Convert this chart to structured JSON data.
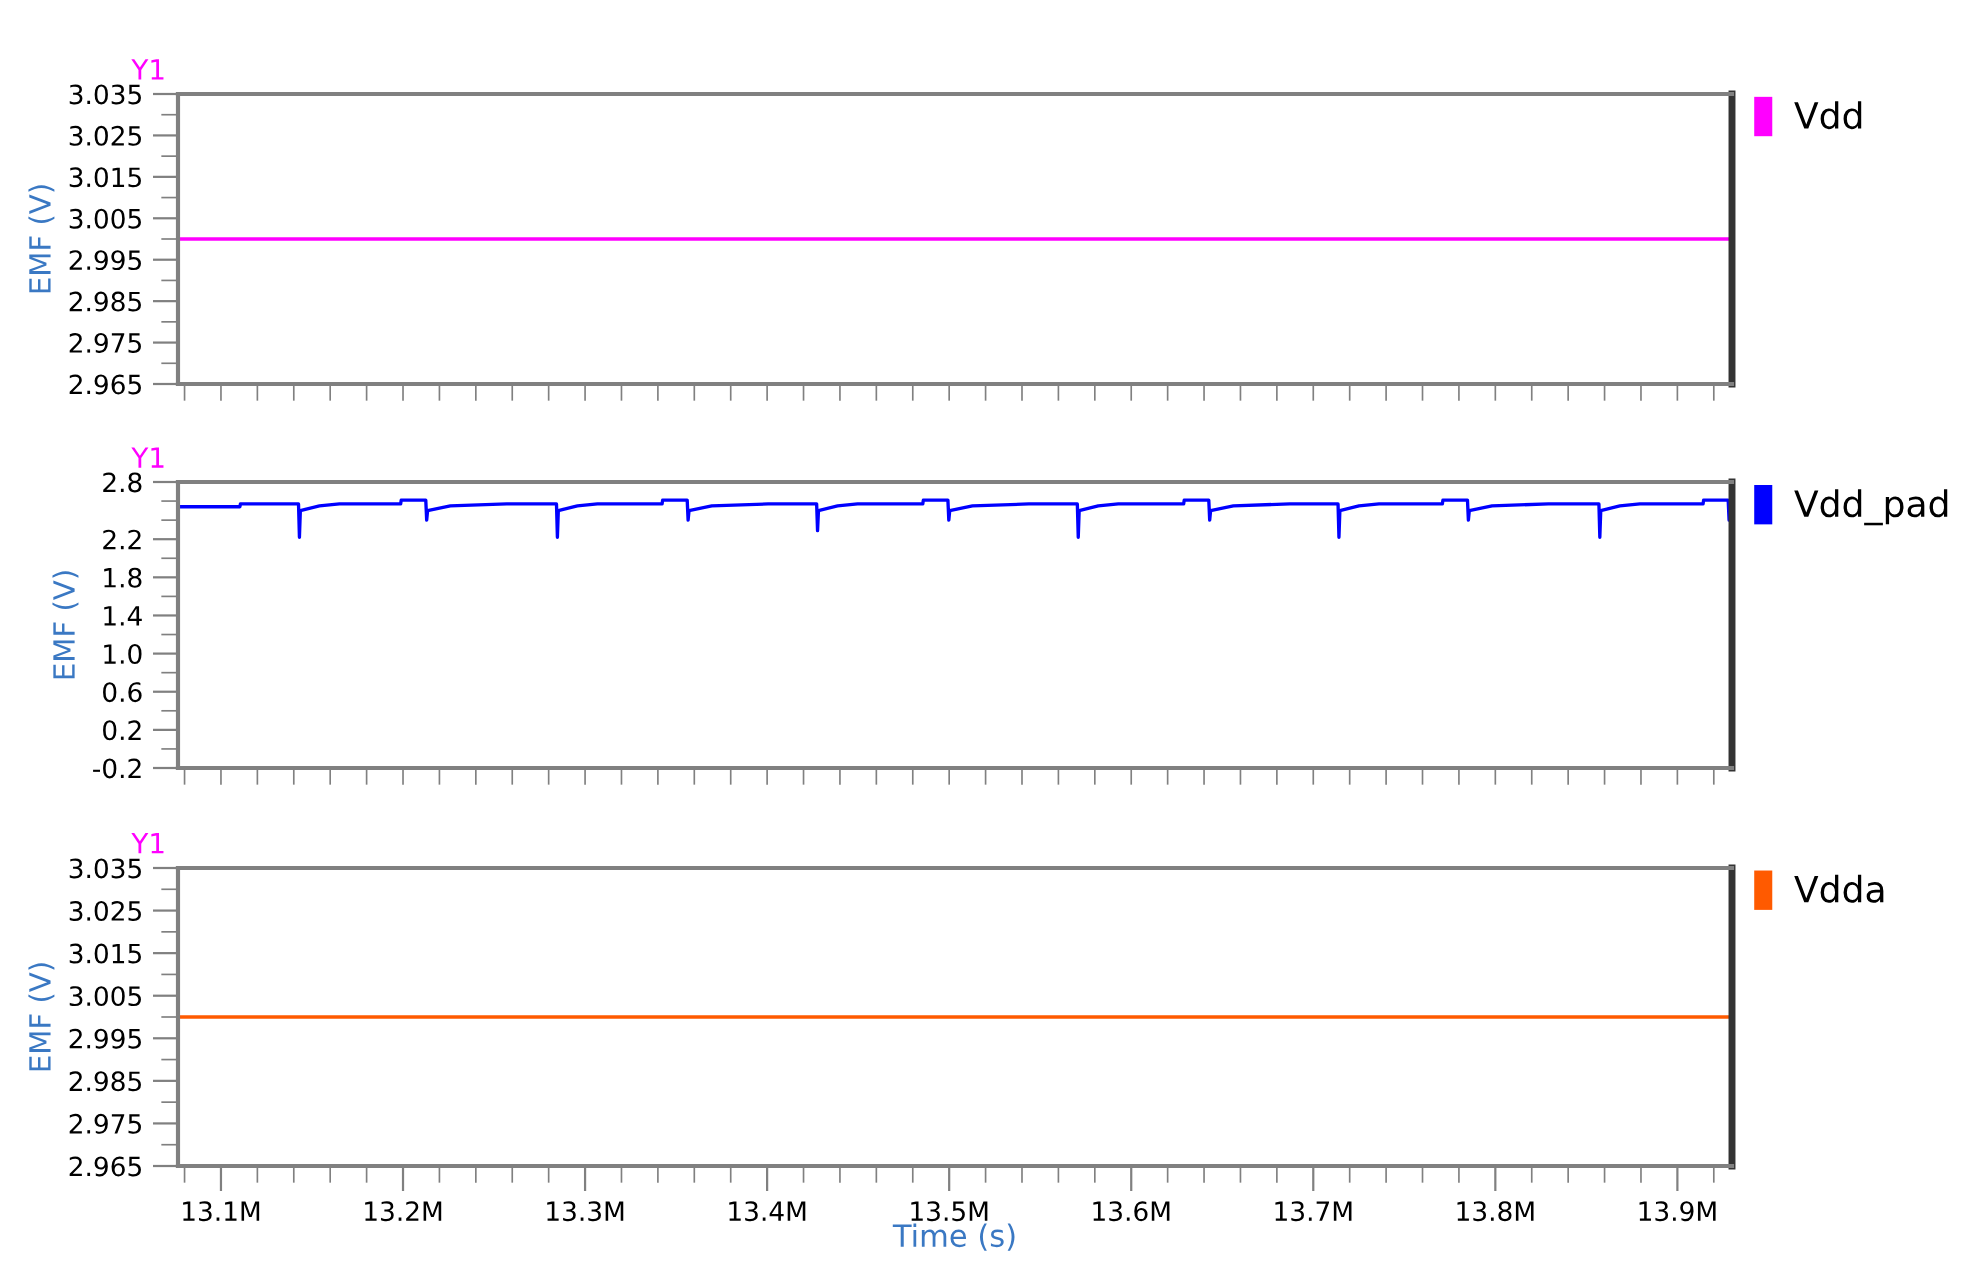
{
  "chart_data": [
    {
      "type": "line",
      "ylabel": "EMF (V)",
      "annotations": [
        "Y1"
      ],
      "legend": "right",
      "tick_labels": "y",
      "xlim": [
        13076400,
        13930000
      ],
      "ylim": [
        2.965,
        3.035
      ],
      "xticks": [
        {
          "value": 13080000,
          "label": null
        },
        {
          "value": 13100000,
          "label": null
        },
        {
          "value": 13120000,
          "label": null
        },
        {
          "value": 13140000,
          "label": null
        },
        {
          "value": 13160000,
          "label": null
        },
        {
          "value": 13180000,
          "label": null
        },
        {
          "value": 13200000,
          "label": null
        },
        {
          "value": 13220000,
          "label": null
        },
        {
          "value": 13240000,
          "label": null
        },
        {
          "value": 13260000,
          "label": null
        },
        {
          "value": 13280000,
          "label": null
        },
        {
          "value": 13300000,
          "label": null
        },
        {
          "value": 13320000,
          "label": null
        },
        {
          "value": 13340000,
          "label": null
        },
        {
          "value": 13360000,
          "label": null
        },
        {
          "value": 13380000,
          "label": null
        },
        {
          "value": 13400000,
          "label": null
        },
        {
          "value": 13420000,
          "label": null
        },
        {
          "value": 13440000,
          "label": null
        },
        {
          "value": 13460000,
          "label": null
        },
        {
          "value": 13480000,
          "label": null
        },
        {
          "value": 13500000,
          "label": null
        },
        {
          "value": 13520000,
          "label": null
        },
        {
          "value": 13540000,
          "label": null
        },
        {
          "value": 13560000,
          "label": null
        },
        {
          "value": 13580000,
          "label": null
        },
        {
          "value": 13600000,
          "label": null
        },
        {
          "value": 13620000,
          "label": null
        },
        {
          "value": 13640000,
          "label": null
        },
        {
          "value": 13660000,
          "label": null
        },
        {
          "value": 13680000,
          "label": null
        },
        {
          "value": 13700000,
          "label": null
        },
        {
          "value": 13720000,
          "label": null
        },
        {
          "value": 13740000,
          "label": null
        },
        {
          "value": 13760000,
          "label": null
        },
        {
          "value": 13780000,
          "label": null
        },
        {
          "value": 13800000,
          "label": null
        },
        {
          "value": 13820000,
          "label": null
        },
        {
          "value": 13840000,
          "label": null
        },
        {
          "value": 13860000,
          "label": null
        },
        {
          "value": 13880000,
          "label": null
        },
        {
          "value": 13900000,
          "label": null
        },
        {
          "value": 13920000,
          "label": null
        }
      ],
      "yticks": [
        3.035,
        {
          "value": 3.03,
          "label": null
        },
        3.025,
        {
          "value": 3.02,
          "label": null
        },
        3.015,
        {
          "value": 3.01,
          "label": null
        },
        3.005,
        {
          "value": 3.0,
          "label": null
        },
        2.995,
        {
          "value": 2.99,
          "label": null
        },
        2.985,
        {
          "value": 2.98,
          "label": null
        },
        2.975,
        {
          "value": 2.97,
          "label": null
        },
        2.965
      ],
      "series": [
        {
          "name": "Vdd",
          "color": "#ff00ff",
          "x": [
            13076400,
            13930000
          ],
          "values": [
            3.0,
            3.0
          ]
        }
      ]
    },
    {
      "type": "line",
      "ylabel": "EMF (V)",
      "annotations": [
        "Y1"
      ],
      "legend": "right",
      "tick_labels": "y",
      "xlim": [
        13076400,
        13930000
      ],
      "ylim": [
        -0.2,
        2.8
      ],
      "xticks": [
        {
          "value": 13080000,
          "label": null
        },
        {
          "value": 13100000,
          "label": null
        },
        {
          "value": 13120000,
          "label": null
        },
        {
          "value": 13140000,
          "label": null
        },
        {
          "value": 13160000,
          "label": null
        },
        {
          "value": 13180000,
          "label": null
        },
        {
          "value": 13200000,
          "label": null
        },
        {
          "value": 13220000,
          "label": null
        },
        {
          "value": 13240000,
          "label": null
        },
        {
          "value": 13260000,
          "label": null
        },
        {
          "value": 13280000,
          "label": null
        },
        {
          "value": 13300000,
          "label": null
        },
        {
          "value": 13320000,
          "label": null
        },
        {
          "value": 13340000,
          "label": null
        },
        {
          "value": 13360000,
          "label": null
        },
        {
          "value": 13380000,
          "label": null
        },
        {
          "value": 13400000,
          "label": null
        },
        {
          "value": 13420000,
          "label": null
        },
        {
          "value": 13440000,
          "label": null
        },
        {
          "value": 13460000,
          "label": null
        },
        {
          "value": 13480000,
          "label": null
        },
        {
          "value": 13500000,
          "label": null
        },
        {
          "value": 13520000,
          "label": null
        },
        {
          "value": 13540000,
          "label": null
        },
        {
          "value": 13560000,
          "label": null
        },
        {
          "value": 13580000,
          "label": null
        },
        {
          "value": 13600000,
          "label": null
        },
        {
          "value": 13620000,
          "label": null
        },
        {
          "value": 13640000,
          "label": null
        },
        {
          "value": 13660000,
          "label": null
        },
        {
          "value": 13680000,
          "label": null
        },
        {
          "value": 13700000,
          "label": null
        },
        {
          "value": 13720000,
          "label": null
        },
        {
          "value": 13740000,
          "label": null
        },
        {
          "value": 13760000,
          "label": null
        },
        {
          "value": 13780000,
          "label": null
        },
        {
          "value": 13800000,
          "label": null
        },
        {
          "value": 13820000,
          "label": null
        },
        {
          "value": 13840000,
          "label": null
        },
        {
          "value": 13860000,
          "label": null
        },
        {
          "value": 13880000,
          "label": null
        },
        {
          "value": 13900000,
          "label": null
        },
        {
          "value": 13920000,
          "label": null
        }
      ],
      "yticks": [
        2.8,
        {
          "value": 2.6,
          "label": null
        },
        {
          "value": 2.4,
          "label": null
        },
        2.2,
        {
          "value": 2.0,
          "label": null
        },
        1.8,
        {
          "value": 1.6,
          "label": null
        },
        1.4,
        {
          "value": 1.2,
          "label": null
        },
        {
          "value": 1.0,
          "label": "1.0"
        },
        {
          "value": 0.8,
          "label": null
        },
        0.6,
        {
          "value": 0.4,
          "label": null
        },
        0.2,
        {
          "value": 0.0,
          "label": null
        },
        -0.2
      ],
      "series": [
        {
          "name": "Vdd_pad",
          "color": "#0000ff",
          "x": [
            13076400,
            13110400,
            13110700,
            13142600,
            13143100,
            13143600,
            13154100,
            13165100,
            13198700,
            13199000,
            13212500,
            13213000,
            13213500,
            13226000,
            13257000,
            13284300,
            13284800,
            13285300,
            13295800,
            13306800,
            13342300,
            13342600,
            13356100,
            13356600,
            13357100,
            13369600,
            13400600,
            13427200,
            13427700,
            13428200,
            13438700,
            13449700,
            13485500,
            13485800,
            13499300,
            13499800,
            13500300,
            13512800,
            13543800,
            13570400,
            13570900,
            13571400,
            13581900,
            13592900,
            13628800,
            13629100,
            13642600,
            13643100,
            13643600,
            13656100,
            13687100,
            13713600,
            13714100,
            13714600,
            13725100,
            13736100,
            13770900,
            13771200,
            13784700,
            13785200,
            13785700,
            13798200,
            13829200,
            13856900,
            13857400,
            13857900,
            13868400,
            13879400,
            13914100,
            13914400,
            13927900,
            13928400,
            13928900
          ],
          "values": [
            2.54,
            2.54,
            2.57,
            2.57,
            2.22,
            2.5,
            2.55,
            2.57,
            2.57,
            2.61,
            2.61,
            2.4,
            2.5,
            2.55,
            2.57,
            2.57,
            2.22,
            2.5,
            2.55,
            2.57,
            2.57,
            2.61,
            2.61,
            2.4,
            2.5,
            2.55,
            2.57,
            2.57,
            2.29,
            2.5,
            2.55,
            2.57,
            2.57,
            2.61,
            2.61,
            2.4,
            2.5,
            2.55,
            2.57,
            2.57,
            2.22,
            2.5,
            2.55,
            2.57,
            2.57,
            2.61,
            2.61,
            2.4,
            2.5,
            2.55,
            2.57,
            2.57,
            2.22,
            2.5,
            2.55,
            2.57,
            2.57,
            2.61,
            2.61,
            2.4,
            2.5,
            2.55,
            2.57,
            2.57,
            2.22,
            2.5,
            2.55,
            2.57,
            2.57,
            2.61,
            2.61,
            2.4,
            2.5
          ]
        }
      ]
    },
    {
      "type": "line",
      "ylabel": "EMF (V)",
      "xlabel": "Time (s)",
      "annotations": [
        "Y1"
      ],
      "legend": "right",
      "xlim": [
        13076400,
        13930000
      ],
      "ylim": [
        2.965,
        3.035
      ],
      "xticks": [
        {
          "value": 13080000,
          "label": null
        },
        {
          "value": 13100000,
          "label": "13.1M"
        },
        {
          "value": 13120000,
          "label": null
        },
        {
          "value": 13140000,
          "label": null
        },
        {
          "value": 13160000,
          "label": null
        },
        {
          "value": 13180000,
          "label": null
        },
        {
          "value": 13200000,
          "label": "13.2M"
        },
        {
          "value": 13220000,
          "label": null
        },
        {
          "value": 13240000,
          "label": null
        },
        {
          "value": 13260000,
          "label": null
        },
        {
          "value": 13280000,
          "label": null
        },
        {
          "value": 13300000,
          "label": "13.3M"
        },
        {
          "value": 13320000,
          "label": null
        },
        {
          "value": 13340000,
          "label": null
        },
        {
          "value": 13360000,
          "label": null
        },
        {
          "value": 13380000,
          "label": null
        },
        {
          "value": 13400000,
          "label": "13.4M"
        },
        {
          "value": 13420000,
          "label": null
        },
        {
          "value": 13440000,
          "label": null
        },
        {
          "value": 13460000,
          "label": null
        },
        {
          "value": 13480000,
          "label": null
        },
        {
          "value": 13500000,
          "label": "13.5M"
        },
        {
          "value": 13520000,
          "label": null
        },
        {
          "value": 13540000,
          "label": null
        },
        {
          "value": 13560000,
          "label": null
        },
        {
          "value": 13580000,
          "label": null
        },
        {
          "value": 13600000,
          "label": "13.6M"
        },
        {
          "value": 13620000,
          "label": null
        },
        {
          "value": 13640000,
          "label": null
        },
        {
          "value": 13660000,
          "label": null
        },
        {
          "value": 13680000,
          "label": null
        },
        {
          "value": 13700000,
          "label": "13.7M"
        },
        {
          "value": 13720000,
          "label": null
        },
        {
          "value": 13740000,
          "label": null
        },
        {
          "value": 13760000,
          "label": null
        },
        {
          "value": 13780000,
          "label": null
        },
        {
          "value": 13800000,
          "label": "13.8M"
        },
        {
          "value": 13820000,
          "label": null
        },
        {
          "value": 13840000,
          "label": null
        },
        {
          "value": 13860000,
          "label": null
        },
        {
          "value": 13880000,
          "label": null
        },
        {
          "value": 13900000,
          "label": "13.9M"
        },
        {
          "value": 13920000,
          "label": null
        }
      ],
      "yticks": [
        3.035,
        {
          "value": 3.03,
          "label": null
        },
        3.025,
        {
          "value": 3.02,
          "label": null
        },
        3.015,
        {
          "value": 3.01,
          "label": null
        },
        3.005,
        {
          "value": 3.0,
          "label": null
        },
        2.995,
        {
          "value": 2.99,
          "label": null
        },
        2.985,
        {
          "value": 2.98,
          "label": null
        },
        2.975,
        {
          "value": 2.97,
          "label": null
        },
        2.965
      ],
      "series": [
        {
          "name": "Vdda",
          "color": "#ff5a00",
          "x": [
            13076400,
            13930000
          ],
          "values": [
            3.0,
            3.0
          ]
        }
      ]
    }
  ]
}
